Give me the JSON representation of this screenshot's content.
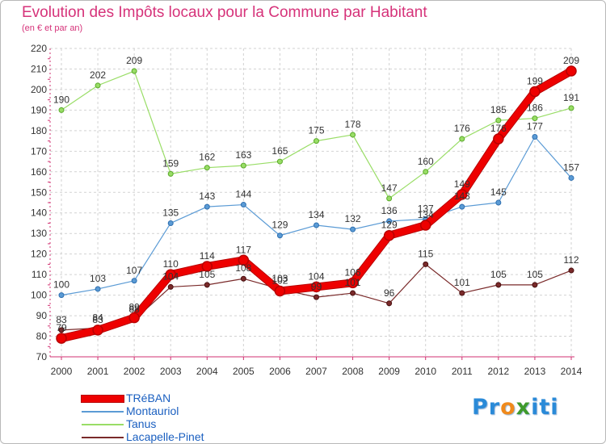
{
  "title": "Evolution des Impôts locaux pour la Commune par Habitant",
  "subtitle": "(en € et par an)",
  "logo": {
    "part1": "Pr",
    "part2": "o",
    "part3": "x",
    "part4": "iti"
  },
  "chart_data": {
    "type": "line",
    "title": "Evolution des Impôts locaux pour la Commune par Habitant",
    "subtitle": "(en € et par an)",
    "xlabel": "",
    "ylabel": "",
    "ylim": [
      70,
      220
    ],
    "yticks": [
      70,
      80,
      90,
      100,
      110,
      120,
      130,
      140,
      150,
      160,
      170,
      180,
      190,
      200,
      210,
      220
    ],
    "grid": true,
    "legend_position": "bottom-left",
    "categories": [
      "2000",
      "2001",
      "2002",
      "2003",
      "2004",
      "2005",
      "2006",
      "2007",
      "2008",
      "2009",
      "2010",
      "2011",
      "2012",
      "2013",
      "2014"
    ],
    "series": [
      {
        "name": "TRéBAN",
        "color": "#ee0000",
        "edge": "#b80000",
        "values": [
          79,
          83,
          89,
          110,
          114,
          117,
          102,
          104,
          106,
          129,
          134,
          149,
          176,
          199,
          209
        ]
      },
      {
        "name": "Montauriol",
        "color": "#5b9bd5",
        "edge": "#2e6fb0",
        "values": [
          100,
          103,
          107,
          135,
          143,
          144,
          129,
          134,
          132,
          136,
          137,
          143,
          145,
          177,
          157
        ]
      },
      {
        "name": "Tanus",
        "color": "#99dd66",
        "edge": "#5aaa2a",
        "values": [
          190,
          202,
          209,
          159,
          162,
          163,
          165,
          175,
          178,
          147,
          160,
          176,
          185,
          186,
          191
        ]
      },
      {
        "name": "Lacapelle-Pinet",
        "color": "#7a2a2a",
        "edge": "#4a1010",
        "values": [
          83,
          84,
          88,
          104,
          105,
          108,
          103,
          99,
          101,
          96,
          115,
          101,
          105,
          105,
          112
        ]
      }
    ]
  }
}
